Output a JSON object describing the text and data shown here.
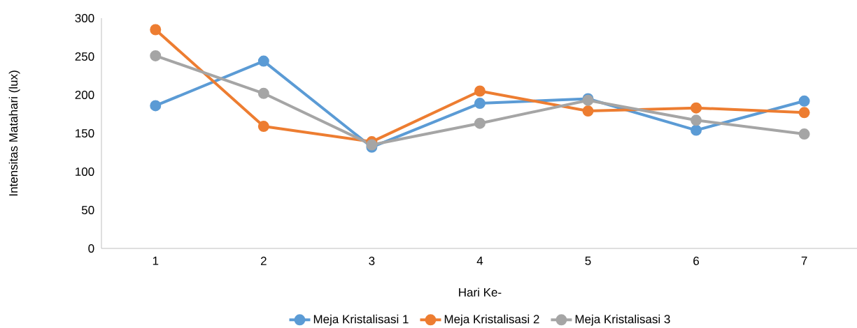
{
  "chart_data": {
    "type": "line",
    "xlabel": "Hari Ke-",
    "ylabel": "Intensitas Matahari (lux)",
    "categories": [
      "1",
      "2",
      "3",
      "4",
      "5",
      "6",
      "7"
    ],
    "ylim": [
      0,
      300
    ],
    "yticks": [
      0,
      50,
      100,
      150,
      200,
      250,
      300
    ],
    "marker": "circle",
    "legend": "bottom",
    "series": [
      {
        "name": "Meja Kristalisasi 1",
        "color": "#5b9bd5",
        "values": [
          186,
          244,
          132,
          189,
          195,
          154,
          192
        ]
      },
      {
        "name": "Meja Kristalisasi 2",
        "color": "#ed7d31",
        "values": [
          285,
          159,
          139,
          205,
          179,
          183,
          177
        ]
      },
      {
        "name": "Meja Kristalisasi 3",
        "color": "#a5a5a5",
        "values": [
          251,
          202,
          135,
          163,
          193,
          167,
          149
        ]
      }
    ]
  }
}
